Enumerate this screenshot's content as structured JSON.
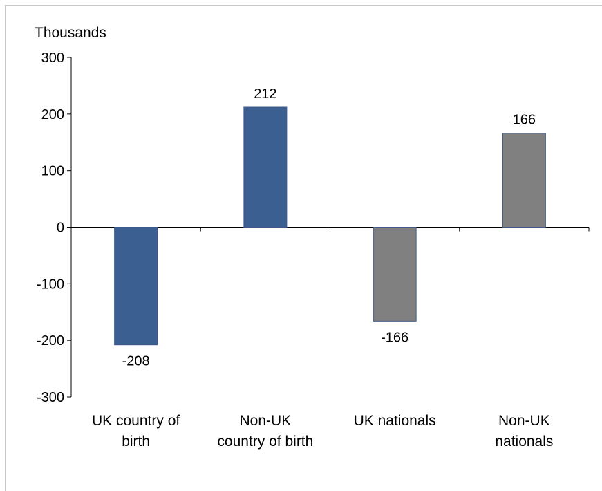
{
  "chart_data": {
    "type": "bar",
    "unit_label": "Thousands",
    "categories": [
      [
        "UK country of",
        "birth"
      ],
      [
        "Non-UK",
        "country of birth"
      ],
      [
        "UK nationals"
      ],
      [
        "Non-UK",
        "nationals"
      ]
    ],
    "values": [
      -208,
      212,
      -166,
      166
    ],
    "data_labels": [
      "-208",
      "212",
      "-166",
      "166"
    ],
    "bar_colors": [
      "#3c5f91",
      "#3c5f91",
      "#808080",
      "#808080"
    ],
    "ylim": [
      -300,
      300
    ],
    "yticks": [
      300,
      200,
      100,
      0,
      -100,
      -200,
      -300
    ],
    "grid": false,
    "legend": "none"
  }
}
